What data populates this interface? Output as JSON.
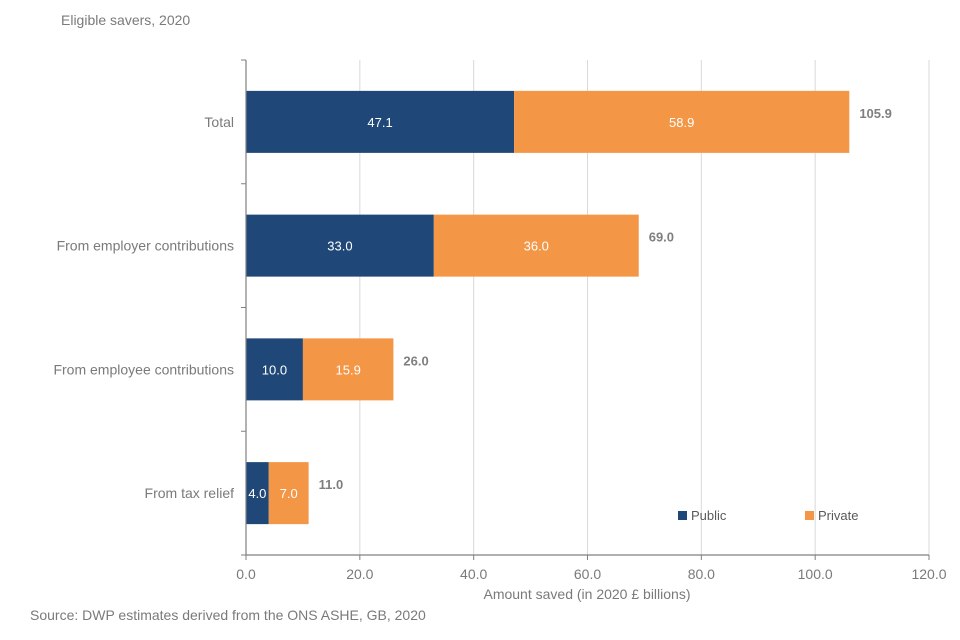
{
  "chart_data": {
    "type": "bar",
    "orientation": "horizontal",
    "stacked": true,
    "title": "",
    "subtitle": "Eligible savers, 2020",
    "source": "Source: DWP estimates derived from the ONS ASHE, GB, 2020",
    "xlabel": "Amount saved (in 2020 £ billions)",
    "ylabel": "",
    "xlim": [
      0,
      120
    ],
    "xticks": [
      "0.0",
      "20.0",
      "40.0",
      "60.0",
      "80.0",
      "100.0",
      "120.0"
    ],
    "xtick_values": [
      0,
      20,
      40,
      60,
      80,
      100,
      120
    ],
    "grid": "vertical",
    "categories": [
      "Total",
      "From employer contributions",
      "From employee contributions",
      "From tax relief"
    ],
    "series": [
      {
        "name": "Public",
        "color": "#1f4878",
        "values": [
          47.1,
          33.0,
          10.0,
          4.0
        ],
        "labels": [
          "47.1",
          "33.0",
          "10.0",
          "4.0"
        ]
      },
      {
        "name": "Private",
        "color": "#f39646",
        "values": [
          58.9,
          36.0,
          15.9,
          7.0
        ],
        "labels": [
          "58.9",
          "36.0",
          "15.9",
          "7.0"
        ]
      }
    ],
    "totals": [
      105.9,
      69.0,
      26.0,
      11.0
    ],
    "total_labels": [
      "105.9",
      "69.0",
      "26.0",
      "11.0"
    ],
    "legend": {
      "position": "bottom-right",
      "entries": [
        "Public",
        "Private"
      ]
    }
  }
}
